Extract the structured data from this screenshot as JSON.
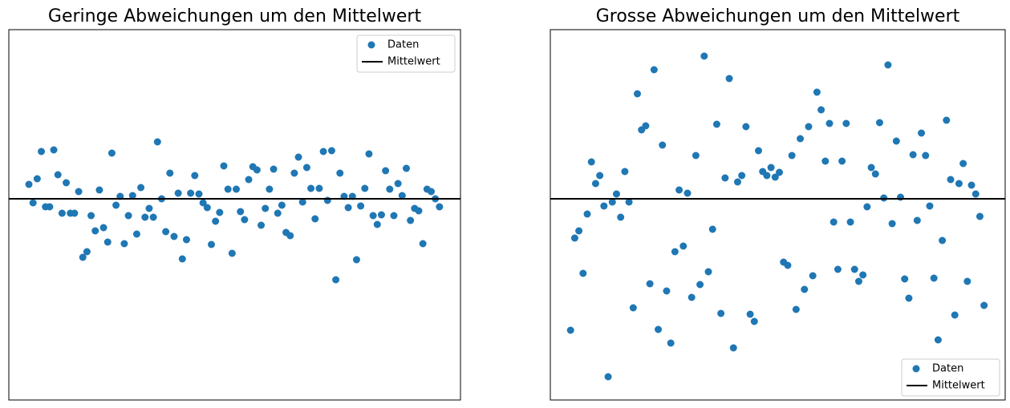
{
  "chart_data": [
    {
      "type": "scatter",
      "title": "Geringe Abweichungen um den Mittelwert",
      "legend": "upper right",
      "mean": 0,
      "mean_name": "Mittelwert",
      "mean_color": "#000000",
      "xlim": [
        -4.84,
        104.06
      ],
      "ylim": [
        -2.51,
        2.11
      ],
      "series": [
        {
          "name": "Daten",
          "color": "#1f77b4",
          "x": [
            0,
            1,
            2,
            3,
            4,
            5,
            6,
            7,
            8,
            9,
            10,
            11,
            12,
            13,
            14,
            15,
            16,
            17,
            18,
            19,
            20,
            21,
            22,
            23,
            24,
            25,
            26,
            27,
            28,
            29,
            30,
            31,
            32,
            33,
            34,
            35,
            36,
            37,
            38,
            39,
            40,
            41,
            42,
            43,
            44,
            45,
            46,
            47,
            48,
            49,
            50,
            51,
            52,
            53,
            54,
            55,
            56,
            57,
            58,
            59,
            60,
            61,
            62,
            63,
            64,
            65,
            66,
            67,
            68,
            69,
            70,
            71,
            72,
            73,
            74,
            75,
            76,
            77,
            78,
            79,
            80,
            81,
            82,
            83,
            84,
            85,
            86,
            87,
            88,
            89,
            90,
            91,
            92,
            93,
            94,
            95,
            96,
            97,
            98,
            99
          ],
          "values": [
            0.18,
            -0.05,
            0.25,
            0.59,
            -0.1,
            -0.1,
            0.61,
            0.3,
            -0.18,
            0.2,
            -0.18,
            -0.18,
            0.09,
            -0.73,
            -0.66,
            -0.21,
            -0.4,
            0.11,
            -0.36,
            -0.54,
            0.57,
            -0.08,
            0.03,
            -0.56,
            -0.21,
            0.04,
            -0.44,
            0.14,
            -0.23,
            -0.12,
            -0.23,
            0.71,
            0,
            -0.41,
            0.32,
            -0.47,
            0.07,
            -0.75,
            -0.51,
            0.07,
            0.29,
            0.06,
            -0.05,
            -0.11,
            -0.57,
            -0.28,
            -0.17,
            0.41,
            0.12,
            -0.68,
            0.12,
            -0.16,
            -0.26,
            0.24,
            0.4,
            0.36,
            -0.33,
            -0.12,
            0.12,
            0.37,
            -0.18,
            -0.08,
            -0.42,
            -0.46,
            0.32,
            0.52,
            -0.04,
            0.39,
            0.13,
            -0.25,
            0.13,
            0.59,
            -0.02,
            0.6,
            -1.01,
            0.32,
            0.03,
            -0.11,
            0.03,
            -0.76,
            -0.09,
            0.13,
            0.56,
            -0.21,
            -0.32,
            -0.2,
            0.35,
            0.12,
            -0.21,
            0.19,
            0.04,
            0.38,
            -0.27,
            -0.12,
            -0.15,
            -0.56,
            0.12,
            0.09,
            0,
            -0.1
          ]
        }
      ]
    },
    {
      "type": "scatter",
      "title": "Grosse Abweichungen um den Mittelwert",
      "legend": "lower right",
      "mean": 0,
      "mean_name": "Mittelwert",
      "mean_color": "#000000",
      "xlim": [
        -4.84,
        104.06
      ],
      "ylim": [
        -2.51,
        2.11
      ],
      "series": [
        {
          "name": "Daten",
          "color": "#1f77b4",
          "x": [
            0,
            1,
            2,
            3,
            4,
            5,
            6,
            7,
            8,
            9,
            10,
            11,
            12,
            13,
            14,
            15,
            16,
            17,
            18,
            19,
            20,
            21,
            22,
            23,
            24,
            25,
            26,
            27,
            28,
            29,
            30,
            31,
            32,
            33,
            34,
            35,
            36,
            37,
            38,
            39,
            40,
            41,
            42,
            43,
            44,
            45,
            46,
            47,
            48,
            49,
            50,
            51,
            52,
            53,
            54,
            55,
            56,
            57,
            58,
            59,
            60,
            61,
            62,
            63,
            64,
            65,
            66,
            67,
            68,
            69,
            70,
            71,
            72,
            73,
            74,
            75,
            76,
            77,
            78,
            79,
            80,
            81,
            82,
            83,
            84,
            85,
            86,
            87,
            88,
            89,
            90,
            91,
            92,
            93,
            94,
            95,
            96,
            97,
            98,
            99
          ],
          "values": [
            -1.64,
            -0.49,
            -0.4,
            -0.93,
            -0.19,
            0.46,
            0.19,
            0.29,
            -0.09,
            -2.22,
            -0.04,
            0.06,
            -0.23,
            0.34,
            -0.04,
            -1.36,
            1.31,
            0.86,
            0.91,
            -1.06,
            1.61,
            -1.63,
            0.67,
            -1.15,
            -1.8,
            -0.66,
            0.11,
            -0.59,
            0.07,
            -1.23,
            0.54,
            -1.07,
            1.78,
            -0.91,
            -0.38,
            0.93,
            -1.43,
            0.26,
            1.5,
            -1.86,
            0.21,
            0.29,
            0.9,
            -1.44,
            -1.53,
            0.6,
            0.34,
            0.29,
            0.39,
            0.27,
            0.33,
            -0.79,
            -0.83,
            0.54,
            -1.38,
            0.75,
            -1.13,
            0.9,
            -0.96,
            1.33,
            1.11,
            0.47,
            0.94,
            -0.29,
            -0.88,
            0.47,
            0.94,
            -0.29,
            -0.88,
            -1.03,
            -0.95,
            -0.1,
            0.39,
            0.31,
            0.95,
            0.01,
            1.67,
            -0.31,
            0.72,
            0.02,
            -1,
            -1.24,
            0.55,
            -0.27,
            0.82,
            0.54,
            -0.09,
            -0.99,
            -1.76,
            -0.52,
            0.98,
            0.24,
            -1.45,
            0.19,
            0.44,
            -1.03,
            0.17,
            0.06,
            -0.22,
            -1.33
          ]
        }
      ]
    }
  ]
}
